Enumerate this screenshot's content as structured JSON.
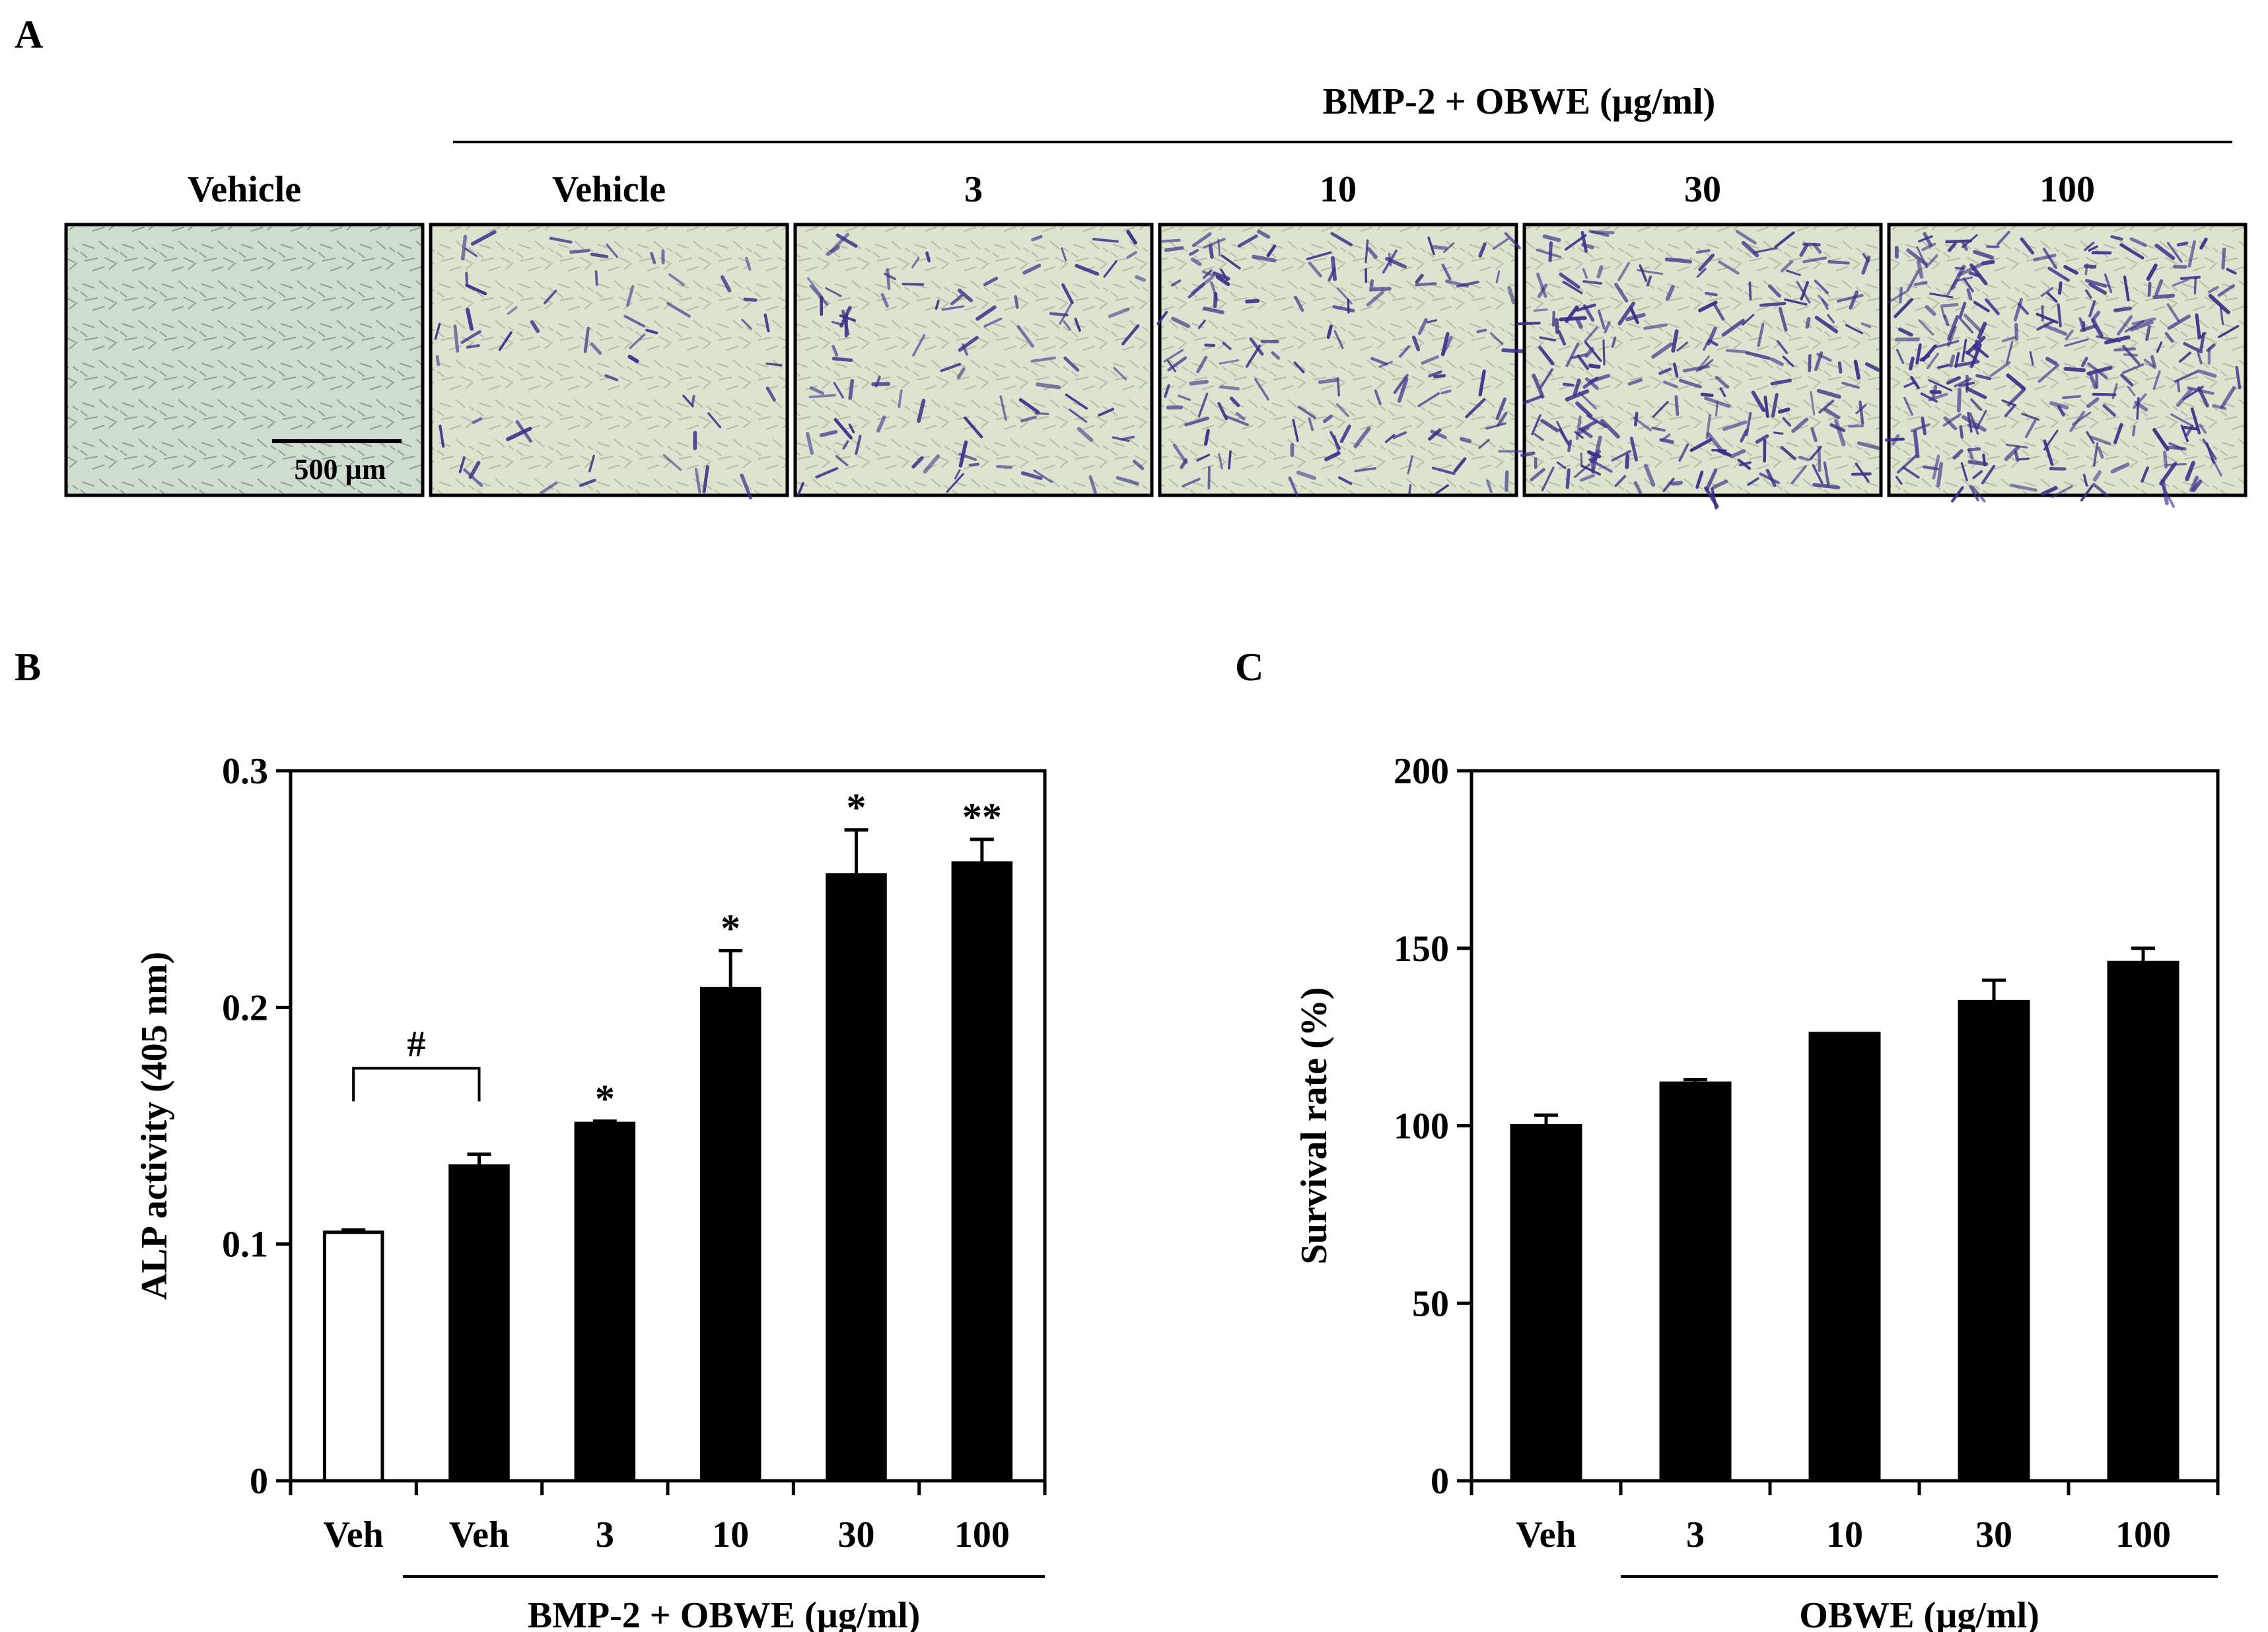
{
  "colors": {
    "bar_fill": "#000000",
    "control_bar_fill": "#ffffff",
    "stain_color": "#3a2f8a",
    "culture_background": "#cfdcd0"
  },
  "panel_a": {
    "label": "A",
    "group_header": "BMP-2 + OBWE (µg/ml)",
    "columns": [
      {
        "label": "Vehicle",
        "stain_level": 0.0
      },
      {
        "label": "Vehicle",
        "stain_level": 0.15
      },
      {
        "label": "3",
        "stain_level": 0.3
      },
      {
        "label": "10",
        "stain_level": 0.5
      },
      {
        "label": "30",
        "stain_level": 0.8
      },
      {
        "label": "100",
        "stain_level": 1.0
      }
    ],
    "scale_bar_label": "500 µm"
  },
  "chart_data": [
    {
      "panel_label": "B",
      "type": "bar",
      "categories": [
        "Veh",
        "Veh",
        "3",
        "10",
        "30",
        "100"
      ],
      "values": [
        0.105,
        0.133,
        0.151,
        0.208,
        0.256,
        0.261
      ],
      "errors": [
        0.001,
        0.005,
        0.001,
        0.016,
        0.019,
        0.01
      ],
      "fills": [
        "white",
        "black",
        "black",
        "black",
        "black",
        "black"
      ],
      "significance": [
        "",
        "",
        "*",
        "*",
        "*",
        "**"
      ],
      "bracket": {
        "from": 0,
        "to": 1,
        "symbol": "#"
      },
      "ylabel": "ALP activity (405 nm)",
      "ylim": [
        0,
        0.3
      ],
      "yticks": [
        "0",
        "0.1",
        "0.2",
        "0.3"
      ],
      "group_label": "BMP-2 + OBWE (µg/ml)",
      "grid": false
    },
    {
      "panel_label": "C",
      "type": "bar",
      "categories": [
        "Veh",
        "3",
        "10",
        "30",
        "100"
      ],
      "values": [
        100,
        112,
        126,
        135,
        146
      ],
      "errors": [
        3,
        1,
        0,
        6,
        4
      ],
      "ylabel": "Survival rate (%)",
      "ylim": [
        0,
        200
      ],
      "yticks": [
        "0",
        "50",
        "100",
        "150",
        "200"
      ],
      "group_label": "OBWE (µg/ml)",
      "grid": false
    }
  ]
}
